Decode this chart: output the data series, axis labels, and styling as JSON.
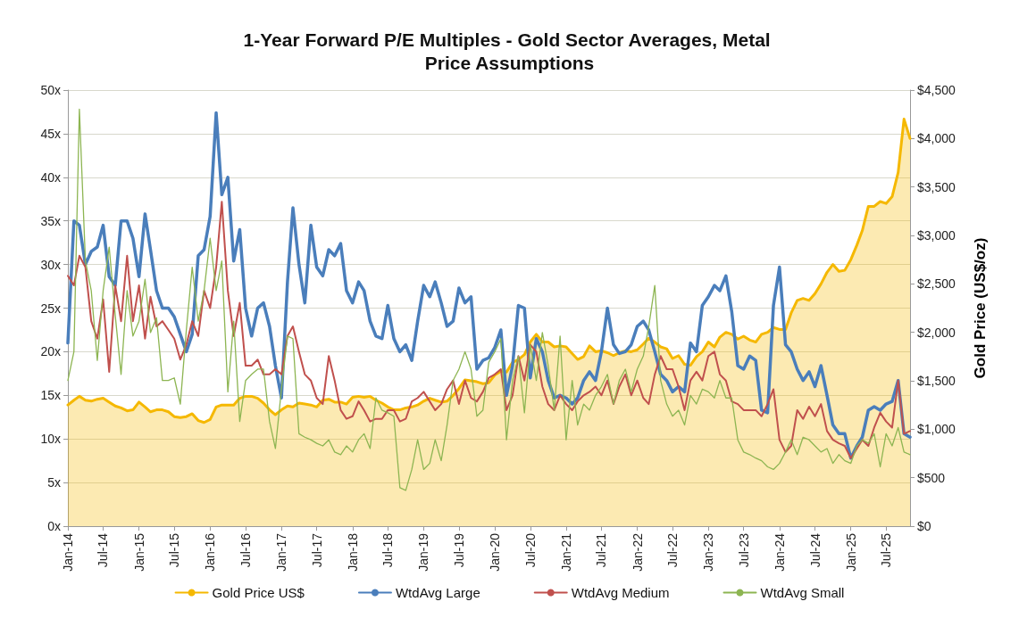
{
  "chart_data": {
    "type": "line",
    "title": "1-Year Forward P/E Multiples - Gold Sector Averages, Metal Price Assumptions",
    "y2label": "Gold Price (US$/oz)",
    "x": [
      "2014-01",
      "2014-02",
      "2014-03",
      "2014-04",
      "2014-05",
      "2014-06",
      "2014-07",
      "2014-08",
      "2014-09",
      "2014-10",
      "2014-11",
      "2014-12",
      "2015-01",
      "2015-02",
      "2015-03",
      "2015-04",
      "2015-05",
      "2015-06",
      "2015-07",
      "2015-08",
      "2015-09",
      "2015-10",
      "2015-11",
      "2015-12",
      "2016-01",
      "2016-02",
      "2016-03",
      "2016-04",
      "2016-05",
      "2016-06",
      "2016-07",
      "2016-08",
      "2016-09",
      "2016-10",
      "2016-11",
      "2016-12",
      "2017-01",
      "2017-02",
      "2017-03",
      "2017-04",
      "2017-05",
      "2017-06",
      "2017-07",
      "2017-08",
      "2017-09",
      "2017-10",
      "2017-11",
      "2017-12",
      "2018-01",
      "2018-02",
      "2018-03",
      "2018-04",
      "2018-05",
      "2018-06",
      "2018-07",
      "2018-08",
      "2018-09",
      "2018-10",
      "2018-11",
      "2018-12",
      "2019-01",
      "2019-02",
      "2019-03",
      "2019-04",
      "2019-05",
      "2019-06",
      "2019-07",
      "2019-08",
      "2019-09",
      "2019-10",
      "2019-11",
      "2019-12",
      "2020-01",
      "2020-02",
      "2020-03",
      "2020-04",
      "2020-05",
      "2020-06",
      "2020-07",
      "2020-08",
      "2020-09",
      "2020-10",
      "2020-11",
      "2020-12",
      "2021-01",
      "2021-02",
      "2021-03",
      "2021-04",
      "2021-05",
      "2021-06",
      "2021-07",
      "2021-08",
      "2021-09",
      "2021-10",
      "2021-11",
      "2021-12",
      "2022-01",
      "2022-02",
      "2022-03",
      "2022-04",
      "2022-05",
      "2022-06",
      "2022-07",
      "2022-08",
      "2022-09",
      "2022-10",
      "2022-11",
      "2022-12",
      "2023-01",
      "2023-02",
      "2023-03",
      "2023-04",
      "2023-05",
      "2023-06",
      "2023-07",
      "2023-08",
      "2023-09",
      "2023-10",
      "2023-11",
      "2023-12",
      "2024-01",
      "2024-02",
      "2024-03",
      "2024-04",
      "2024-05",
      "2024-06",
      "2024-07",
      "2024-08",
      "2024-09",
      "2024-10",
      "2024-11",
      "2024-12",
      "2025-01",
      "2025-02",
      "2025-03",
      "2025-04",
      "2025-05",
      "2025-06",
      "2025-07",
      "2025-08",
      "2025-09",
      "2025-10",
      "2025-11"
    ],
    "series": [
      {
        "name": "Gold Price US$",
        "type": "area",
        "axis": "y2",
        "color": "#f5b800",
        "values": [
          1250,
          1300,
          1340,
          1300,
          1290,
          1310,
          1320,
          1280,
          1240,
          1220,
          1190,
          1200,
          1280,
          1230,
          1180,
          1200,
          1200,
          1180,
          1130,
          1120,
          1130,
          1160,
          1090,
          1070,
          1100,
          1230,
          1250,
          1250,
          1250,
          1320,
          1340,
          1340,
          1320,
          1270,
          1200,
          1150,
          1200,
          1240,
          1230,
          1270,
          1260,
          1250,
          1230,
          1300,
          1310,
          1280,
          1280,
          1260,
          1330,
          1340,
          1330,
          1340,
          1300,
          1270,
          1230,
          1200,
          1200,
          1220,
          1230,
          1250,
          1290,
          1320,
          1300,
          1280,
          1290,
          1350,
          1420,
          1510,
          1500,
          1490,
          1470,
          1480,
          1560,
          1600,
          1590,
          1690,
          1720,
          1770,
          1900,
          1980,
          1900,
          1900,
          1850,
          1860,
          1850,
          1780,
          1720,
          1750,
          1860,
          1800,
          1810,
          1790,
          1760,
          1790,
          1810,
          1800,
          1820,
          1880,
          1940,
          1900,
          1850,
          1830,
          1730,
          1760,
          1670,
          1660,
          1750,
          1800,
          1900,
          1850,
          1950,
          2000,
          1980,
          1930,
          1960,
          1920,
          1900,
          1980,
          2000,
          2050,
          2030,
          2030,
          2200,
          2330,
          2350,
          2330,
          2400,
          2500,
          2620,
          2700,
          2630,
          2640,
          2750,
          2900,
          3050,
          3300,
          3300,
          3350,
          3330,
          3400,
          3650,
          4200,
          4000
        ]
      },
      {
        "name": "WtdAvg Large",
        "color": "#4a7ebb",
        "values": [
          21,
          35,
          34.5,
          30,
          31.5,
          32,
          34.5,
          28.6,
          27.6,
          35,
          35,
          33,
          28.6,
          35.8,
          31.7,
          27,
          25,
          25,
          24,
          22,
          20,
          22,
          31,
          31.7,
          35.5,
          47.4,
          38,
          40,
          30.4,
          34,
          25,
          21.8,
          25,
          25.6,
          22.9,
          18.4,
          14.7,
          28,
          36.5,
          30,
          25.6,
          34.5,
          29.7,
          28.7,
          31.7,
          31,
          32.4,
          27,
          25.6,
          28,
          27,
          23.5,
          21.8,
          21.5,
          25.3,
          21.5,
          20,
          20.8,
          19,
          23.5,
          27.6,
          26.3,
          28,
          25.6,
          22.9,
          23.5,
          27.3,
          25.6,
          26.3,
          18,
          19,
          19.3,
          20.5,
          22.5,
          15,
          18.4,
          25.3,
          25,
          17,
          21.5,
          20,
          16.7,
          14.7,
          15,
          14.7,
          14,
          14.7,
          16.7,
          17.7,
          16.7,
          20,
          25,
          20.8,
          19.8,
          20,
          20.8,
          22.9,
          23.5,
          22.5,
          20,
          17.4,
          16.7,
          15.4,
          16,
          15.4,
          21,
          20,
          25.3,
          26.3,
          27.6,
          27,
          28.7,
          24.6,
          18.4,
          18,
          19.5,
          19,
          13.3,
          13,
          25.3,
          29.7,
          20.8,
          20,
          18,
          16.7,
          17.7,
          16,
          18.4,
          15,
          11.6,
          10.6,
          10.6,
          7.8,
          9.2,
          10.2,
          13.3,
          13.7,
          13.3,
          14,
          14.3,
          16.7,
          10.6,
          10.2
        ]
      },
      {
        "name": "WtdAvg Medium",
        "color": "#c0504d",
        "values": [
          28.7,
          27.6,
          31,
          29.7,
          23.5,
          21.5,
          26,
          17.7,
          27.6,
          23.5,
          31,
          23.5,
          27.6,
          21.5,
          26.3,
          22.9,
          23.5,
          22.5,
          21.5,
          19.1,
          20.8,
          23.5,
          21.8,
          27,
          25,
          29.7,
          37.2,
          27,
          21.8,
          25.6,
          18.4,
          18.4,
          19.1,
          17.4,
          17.4,
          18,
          17.4,
          21.8,
          22.9,
          20,
          17.4,
          16.7,
          14.7,
          14,
          19.5,
          16.7,
          13.3,
          12.3,
          12.6,
          14.3,
          13.3,
          12,
          12.3,
          12.3,
          13.3,
          13.3,
          12,
          12.3,
          14.3,
          14.7,
          15.4,
          14.3,
          13.3,
          14,
          15.7,
          16.7,
          14,
          16.7,
          14.7,
          14.3,
          15.4,
          17,
          17.4,
          18,
          13.3,
          15,
          19.5,
          16.7,
          20.8,
          20,
          16,
          14,
          13.3,
          15,
          14,
          13.3,
          14.3,
          15,
          15.4,
          16,
          15,
          16.7,
          14,
          16,
          17.4,
          15,
          16.7,
          14.7,
          14,
          17.4,
          19.5,
          18,
          18,
          16,
          13.3,
          16.7,
          17.7,
          16.7,
          19.5,
          20,
          17.4,
          16.7,
          14.3,
          14,
          13.3,
          13.3,
          13.3,
          12.6,
          14,
          15.7,
          9.9,
          8.5,
          9.2,
          13.3,
          12.3,
          13.7,
          12.6,
          14,
          10.9,
          9.9,
          9.5,
          9.2,
          7.8,
          8.9,
          9.9,
          9.2,
          11.3,
          13,
          12,
          11.3,
          16.7,
          10.6,
          10.9
        ]
      },
      {
        "name": "WtdAvg Small",
        "color": "#8db552",
        "values": [
          16.7,
          20,
          47.8,
          30.4,
          27,
          19,
          27,
          32,
          24.2,
          17.4,
          27,
          21.8,
          23.5,
          28.3,
          22.2,
          23.9,
          16.7,
          16.7,
          17,
          14,
          22.5,
          29.7,
          23.5,
          27,
          33,
          27,
          30.4,
          15.4,
          23.5,
          12,
          16.7,
          17.4,
          18,
          18,
          12,
          8.9,
          15.7,
          21.8,
          21.5,
          10.6,
          10.2,
          9.9,
          9.5,
          9.2,
          9.9,
          8.5,
          8.2,
          9.2,
          8.5,
          9.9,
          10.6,
          8.9,
          14.7,
          13.3,
          13,
          12.6,
          4.4,
          4.1,
          6.5,
          9.9,
          6.5,
          7.2,
          9.9,
          7.5,
          11.6,
          16.7,
          18,
          20,
          18,
          12.6,
          13.3,
          18.8,
          20,
          21.5,
          9.9,
          16.7,
          19.5,
          13,
          20.8,
          16.7,
          22.2,
          18.4,
          13.3,
          21.8,
          9.9,
          16.7,
          11.6,
          14,
          13.3,
          15,
          16,
          17.4,
          14,
          16.7,
          18,
          15.4,
          18,
          19.5,
          22.9,
          27.6,
          16.7,
          14,
          12.6,
          13.3,
          11.6,
          15,
          14,
          15.7,
          15.4,
          14.7,
          16.7,
          14.7,
          14.7,
          9.9,
          8.5,
          8.2,
          7.8,
          7.5,
          6.8,
          6.5,
          7.2,
          8.5,
          9.9,
          8.2,
          10.2,
          9.9,
          9.2,
          8.5,
          8.9,
          7.2,
          8.2,
          7.5,
          7.2,
          9.2,
          9.9,
          9.5,
          10.6,
          6.8,
          10.6,
          9.2,
          11.3,
          8.5,
          8.2
        ]
      }
    ],
    "xlim": [
      "2014-01",
      "2025-11"
    ],
    "xticks": [
      {
        "value": "2014-01",
        "label": "Jan-14"
      },
      {
        "value": "2014-07",
        "label": "Jul-14"
      },
      {
        "value": "2015-01",
        "label": "Jan-15"
      },
      {
        "value": "2015-07",
        "label": "Jul-15"
      },
      {
        "value": "2016-01",
        "label": "Jan-16"
      },
      {
        "value": "2016-07",
        "label": "Jul-16"
      },
      {
        "value": "2017-01",
        "label": "Jan-17"
      },
      {
        "value": "2017-07",
        "label": "Jul-17"
      },
      {
        "value": "2018-01",
        "label": "Jan-18"
      },
      {
        "value": "2018-07",
        "label": "Jul-18"
      },
      {
        "value": "2019-01",
        "label": "Jan-19"
      },
      {
        "value": "2019-07",
        "label": "Jul-19"
      },
      {
        "value": "2020-01",
        "label": "Jan-20"
      },
      {
        "value": "2020-07",
        "label": "Jul-20"
      },
      {
        "value": "2021-01",
        "label": "Jan-21"
      },
      {
        "value": "2021-07",
        "label": "Jul-21"
      },
      {
        "value": "2022-01",
        "label": "Jan-22"
      },
      {
        "value": "2022-07",
        "label": "Jul-22"
      },
      {
        "value": "2023-01",
        "label": "Jan-23"
      },
      {
        "value": "2023-07",
        "label": "Jul-23"
      },
      {
        "value": "2024-01",
        "label": "Jan-24"
      },
      {
        "value": "2024-07",
        "label": "Jul-24"
      },
      {
        "value": "2025-01",
        "label": "Jan-25"
      },
      {
        "value": "2025-07",
        "label": "Jul-25"
      }
    ],
    "ylim": [
      0,
      50
    ],
    "yticks": [
      {
        "value": 0,
        "label": "0x"
      },
      {
        "value": 5,
        "label": "5x"
      },
      {
        "value": 10,
        "label": "10x"
      },
      {
        "value": 15,
        "label": "15x"
      },
      {
        "value": 20,
        "label": "20x"
      },
      {
        "value": 25,
        "label": "25x"
      },
      {
        "value": 30,
        "label": "30x"
      },
      {
        "value": 35,
        "label": "35x"
      },
      {
        "value": 40,
        "label": "40x"
      },
      {
        "value": 45,
        "label": "45x"
      },
      {
        "value": 50,
        "label": "50x"
      }
    ],
    "y2lim": [
      0,
      4500
    ],
    "y2ticks": [
      {
        "value": 0,
        "label": "$0"
      },
      {
        "value": 500,
        "label": "$500"
      },
      {
        "value": 1000,
        "label": "$1,000"
      },
      {
        "value": 1500,
        "label": "$1,500"
      },
      {
        "value": 2000,
        "label": "$2,000"
      },
      {
        "value": 2500,
        "label": "$2,500"
      },
      {
        "value": 3000,
        "label": "$3,000"
      },
      {
        "value": 3500,
        "label": "$3,500"
      },
      {
        "value": 4000,
        "label": "$4,000"
      },
      {
        "value": 4500,
        "label": "$4,500"
      }
    ],
    "grid": "y",
    "legend": "bottom",
    "marker": "none",
    "line_style": "solid"
  }
}
